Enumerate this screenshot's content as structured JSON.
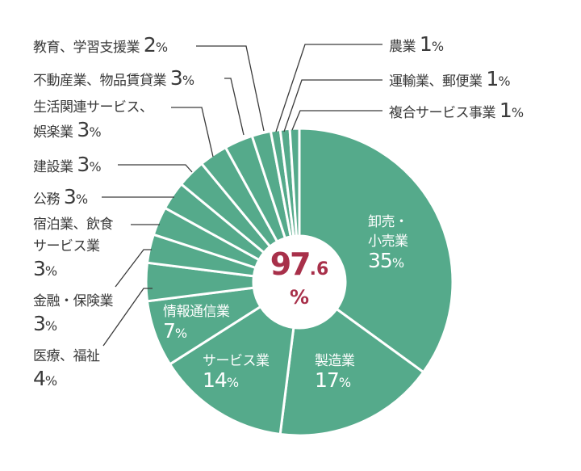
{
  "chart_data": {
    "type": "pie",
    "subtype": "donut",
    "title": "",
    "center_label": {
      "value_int": "97",
      "value_dec": ".6",
      "unit": "%"
    },
    "start_angle_deg": 0,
    "direction": "clockwise",
    "unit": "%",
    "slices": [
      {
        "label": "卸売・小売業",
        "value": 35
      },
      {
        "label": "製造業",
        "value": 17
      },
      {
        "label": "サービス業",
        "value": 14
      },
      {
        "label": "情報通信業",
        "value": 7
      },
      {
        "label": "医療、福祉",
        "value": 4
      },
      {
        "label": "金融・保険業",
        "value": 3
      },
      {
        "label": "宿泊業、飲食サービス業",
        "value": 3
      },
      {
        "label": "公務",
        "value": 3
      },
      {
        "label": "建設業",
        "value": 3
      },
      {
        "label": "生活関連サービス、娯楽業",
        "value": 3
      },
      {
        "label": "不動産業、物品賃貸業",
        "value": 3
      },
      {
        "label": "教育、学習支援業",
        "value": 2
      },
      {
        "label": "農業",
        "value": 1
      },
      {
        "label": "運輸業、郵便業",
        "value": 1
      },
      {
        "label": "複合サービス事業",
        "value": 1
      }
    ],
    "colors": {
      "slice": "#55aa8b",
      "separator": "#ffffff",
      "center_text": "#a8304a",
      "label_text": "#3a3a3a",
      "leader_line": "#3a3a3a"
    }
  },
  "inner_labels": {
    "wholesale": {
      "line1": "卸売・",
      "line2": "小売業",
      "num": "35",
      "pct": "%"
    },
    "manufacturing": {
      "line1": "製造業",
      "num": "17",
      "pct": "%"
    },
    "services": {
      "line1": "サービス業",
      "num": "14",
      "pct": "%"
    },
    "info": {
      "line1": "情報通信業",
      "num": "7",
      "pct": "%"
    }
  },
  "outer_labels": {
    "education": {
      "text": "教育、学習支援業",
      "num": "2",
      "pct": "%"
    },
    "realestate": {
      "text": "不動産業、物品賃貸業",
      "num": "3",
      "pct": "%"
    },
    "lifestyle": {
      "line1": "生活関連サービス、",
      "line2": "娯楽業",
      "num": "3",
      "pct": "%"
    },
    "construction": {
      "text": "建設業",
      "num": "3",
      "pct": "%"
    },
    "public": {
      "text": "公務",
      "num": "3",
      "pct": "%"
    },
    "lodging": {
      "line1": "宿泊業、飲食",
      "line2": "サービス業",
      "num": "3",
      "pct": "%"
    },
    "finance": {
      "line1": "金融・保険業",
      "num": "3",
      "pct": "%"
    },
    "medical": {
      "line1": "医療、福祉",
      "num": "4",
      "pct": "%"
    },
    "agriculture": {
      "text": "農業",
      "num": "1",
      "pct": "%"
    },
    "transport": {
      "text": "運輸業、郵便業",
      "num": "1",
      "pct": "%"
    },
    "compound": {
      "text": "複合サービス事業",
      "num": "1",
      "pct": "%"
    }
  }
}
